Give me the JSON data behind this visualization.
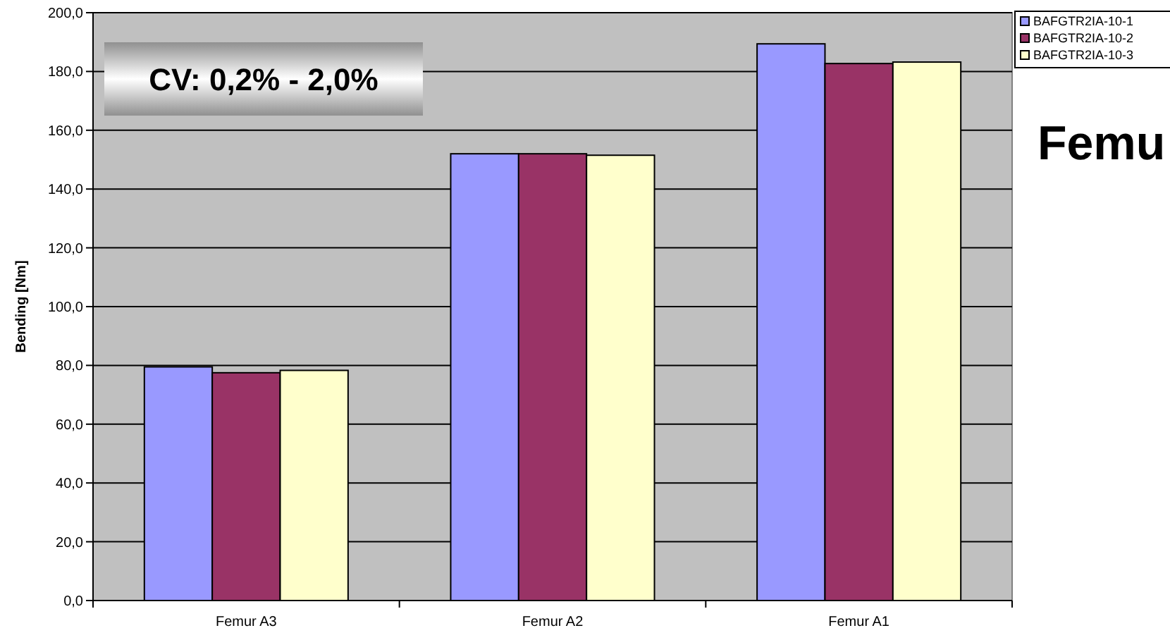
{
  "chart_data": {
    "type": "bar",
    "title": "Femu",
    "ylabel": "Bending [Nm]",
    "annotations": [
      "CV: 0,2% - 2,0%"
    ],
    "categories": [
      "Femur A3",
      "Femur A2",
      "Femur A1"
    ],
    "series": [
      {
        "name": "BAFGTR2IA-10-1",
        "color": "#9999ff",
        "values": [
          79.5,
          152,
          189.4
        ]
      },
      {
        "name": "BAFGTR2IA-10-2",
        "color": "#993366",
        "values": [
          77.5,
          152,
          182.7
        ]
      },
      {
        "name": "BAFGTR2IA-10-3",
        "color": "#ffffcc",
        "values": [
          78.3,
          151.5,
          183.2
        ]
      }
    ],
    "ylim": [
      0,
      200
    ],
    "yticks": [
      {
        "value": 0,
        "label": "0,0"
      },
      {
        "value": 20,
        "label": "20,0"
      },
      {
        "value": 40,
        "label": "40,0"
      },
      {
        "value": 60,
        "label": "60,0"
      },
      {
        "value": 80,
        "label": "80,0"
      },
      {
        "value": 100,
        "label": "100,0"
      },
      {
        "value": 120,
        "label": "120,0"
      },
      {
        "value": 140,
        "label": "140,0"
      },
      {
        "value": 160,
        "label": "160,0"
      },
      {
        "value": 180,
        "label": "180,0"
      },
      {
        "value": 200,
        "label": "200,0"
      }
    ],
    "grid": "y",
    "legend": "top right"
  }
}
